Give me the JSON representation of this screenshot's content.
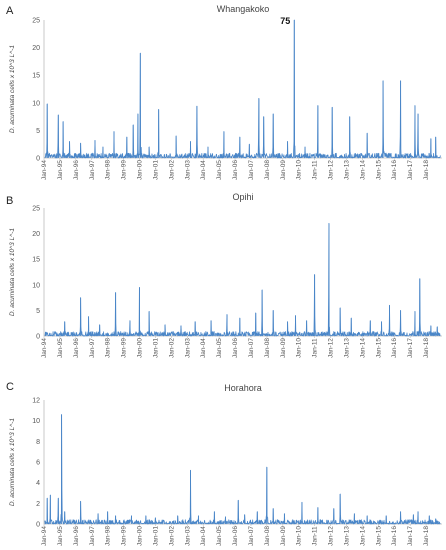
{
  "chart_data": [
    {
      "type": "line",
      "panel_letter": "A",
      "title": "Whangakoko",
      "ylabel": "D. acuminata cells x 10^3 L^-1",
      "ylim": [
        0,
        25
      ],
      "yticks": [
        0,
        5,
        10,
        15,
        20,
        25
      ],
      "x_tick_labels": [
        "Jan-94",
        "Jan-95",
        "Jan-96",
        "Jan-97",
        "Jan-98",
        "Jan-99",
        "Jan-00",
        "Jan-01",
        "Jan-02",
        "Jan-03",
        "Jan-04",
        "Jan-05",
        "Jan-06",
        "Jan-07",
        "Jan-08",
        "Jan-09",
        "Jan-10",
        "Jan-11",
        "Jan-12",
        "Jan-13",
        "Jan-14",
        "Jan-15",
        "Jan-16",
        "Jan-17",
        "Jan-18"
      ],
      "x_range": [
        1994.0,
        2019.0
      ],
      "grid": false,
      "color": "#4a86c8",
      "annotations": [
        {
          "text": "75",
          "x": 2009.72,
          "y": 25
        }
      ],
      "peaks": [
        [
          1994.2,
          9.8
        ],
        [
          1994.9,
          7.8
        ],
        [
          1995.2,
          6.6
        ],
        [
          1995.6,
          3.0
        ],
        [
          1996.3,
          2.7
        ],
        [
          1997.2,
          3.2
        ],
        [
          1997.7,
          2.0
        ],
        [
          1998.4,
          4.8
        ],
        [
          1999.2,
          3.8
        ],
        [
          1999.6,
          6.0
        ],
        [
          1999.9,
          8.0
        ],
        [
          2000.05,
          19.0
        ],
        [
          2000.6,
          2.0
        ],
        [
          2001.2,
          8.8
        ],
        [
          2002.3,
          4.0
        ],
        [
          2003.2,
          3.0
        ],
        [
          2003.6,
          9.4
        ],
        [
          2004.3,
          2.0
        ],
        [
          2005.3,
          4.8
        ],
        [
          2006.3,
          3.8
        ],
        [
          2006.9,
          2.5
        ],
        [
          2007.5,
          10.8
        ],
        [
          2007.8,
          7.5
        ],
        [
          2008.4,
          8.0
        ],
        [
          2009.3,
          3.0
        ],
        [
          2009.72,
          25.0
        ],
        [
          2010.4,
          2.0
        ],
        [
          2011.2,
          9.5
        ],
        [
          2012.1,
          9.2
        ],
        [
          2013.2,
          7.5
        ],
        [
          2014.3,
          4.5
        ],
        [
          2015.3,
          14.0
        ],
        [
          2016.4,
          14.0
        ],
        [
          2017.3,
          9.5
        ],
        [
          2017.5,
          8.0
        ],
        [
          2018.3,
          3.5
        ],
        [
          2018.6,
          3.8
        ]
      ]
    },
    {
      "type": "line",
      "panel_letter": "B",
      "title": "Opihi",
      "ylabel": "D. acuminata cells x 10^3 L^-1",
      "ylim": [
        0,
        25
      ],
      "yticks": [
        0,
        5,
        10,
        15,
        20,
        25
      ],
      "x_tick_labels": [
        "Jan-94",
        "Jan-95",
        "Jan-96",
        "Jan-97",
        "Jan-98",
        "Jan-99",
        "Jan-00",
        "Jan-01",
        "Jan-02",
        "Jan-03",
        "Jan-04",
        "Jan-05",
        "Jan-06",
        "Jan-07",
        "Jan-08",
        "Jan-09",
        "Jan-10",
        "Jan-11",
        "Jan-12",
        "Jan-13",
        "Jan-14",
        "Jan-15",
        "Jan-16",
        "Jan-17",
        "Jan-18"
      ],
      "x_range": [
        1994.0,
        2019.0
      ],
      "grid": false,
      "color": "#4a86c8",
      "annotations": [],
      "peaks": [
        [
          1995.3,
          2.8
        ],
        [
          1996.3,
          7.5
        ],
        [
          1996.8,
          3.8
        ],
        [
          1997.5,
          2.2
        ],
        [
          1998.5,
          8.5
        ],
        [
          1999.4,
          3.0
        ],
        [
          2000.0,
          9.5
        ],
        [
          2000.6,
          4.8
        ],
        [
          2001.6,
          2.2
        ],
        [
          2002.6,
          2.0
        ],
        [
          2003.5,
          2.8
        ],
        [
          2004.5,
          3.0
        ],
        [
          2005.5,
          4.2
        ],
        [
          2006.3,
          3.5
        ],
        [
          2007.3,
          4.5
        ],
        [
          2007.7,
          9.0
        ],
        [
          2008.4,
          5.0
        ],
        [
          2009.3,
          2.8
        ],
        [
          2009.8,
          4.0
        ],
        [
          2010.5,
          3.0
        ],
        [
          2011.0,
          12.0
        ],
        [
          2011.9,
          22.0
        ],
        [
          2012.6,
          5.5
        ],
        [
          2013.3,
          3.5
        ],
        [
          2014.5,
          3.0
        ],
        [
          2015.2,
          2.8
        ],
        [
          2015.7,
          6.0
        ],
        [
          2016.4,
          5.0
        ],
        [
          2017.3,
          4.8
        ],
        [
          2017.6,
          11.2
        ],
        [
          2018.3,
          2.0
        ],
        [
          2018.7,
          1.8
        ]
      ]
    },
    {
      "type": "line",
      "panel_letter": "C",
      "title": "Horahora",
      "ylabel": "D. acuminata cells x 10^3 L^-1",
      "ylim": [
        0,
        12
      ],
      "yticks": [
        0,
        2,
        4,
        6,
        8,
        10,
        12
      ],
      "x_tick_labels": [
        "Jan-94",
        "Jan-95",
        "Jan-96",
        "Jan-97",
        "Jan-98",
        "Jan-99",
        "Jan-00",
        "Jan-01",
        "Jan-02",
        "Jan-03",
        "Jan-04",
        "Jan-05",
        "Jan-06",
        "Jan-07",
        "Jan-08",
        "Jan-09",
        "Jan-10",
        "Jan-11",
        "Jan-12",
        "Jan-13",
        "Jan-14",
        "Jan-15",
        "Jan-16",
        "Jan-17",
        "Jan-18"
      ],
      "x_range": [
        1994.0,
        2019.0
      ],
      "grid": false,
      "color": "#4a86c8",
      "annotations": [],
      "peaks": [
        [
          1994.2,
          2.5
        ],
        [
          1994.4,
          2.8
        ],
        [
          1994.9,
          2.5
        ],
        [
          1995.1,
          10.6
        ],
        [
          1995.3,
          1.2
        ],
        [
          1996.3,
          2.2
        ],
        [
          1997.4,
          1.0
        ],
        [
          1998.0,
          1.2
        ],
        [
          1998.5,
          0.8
        ],
        [
          1999.5,
          0.8
        ],
        [
          2000.4,
          0.8
        ],
        [
          2001.0,
          0.6
        ],
        [
          2002.4,
          0.8
        ],
        [
          2003.2,
          5.2
        ],
        [
          2003.7,
          0.8
        ],
        [
          2004.7,
          1.2
        ],
        [
          2005.4,
          0.7
        ],
        [
          2006.2,
          2.3
        ],
        [
          2006.6,
          0.9
        ],
        [
          2007.4,
          1.2
        ],
        [
          2008.0,
          5.5
        ],
        [
          2008.4,
          1.5
        ],
        [
          2009.1,
          1.0
        ],
        [
          2010.2,
          2.1
        ],
        [
          2011.2,
          1.6
        ],
        [
          2012.2,
          1.5
        ],
        [
          2012.6,
          2.9
        ],
        [
          2013.5,
          1.0
        ],
        [
          2014.3,
          0.8
        ],
        [
          2015.5,
          0.8
        ],
        [
          2016.4,
          1.2
        ],
        [
          2017.2,
          0.9
        ],
        [
          2017.5,
          1.2
        ],
        [
          2018.2,
          0.8
        ],
        [
          2018.6,
          0.5
        ]
      ]
    }
  ]
}
